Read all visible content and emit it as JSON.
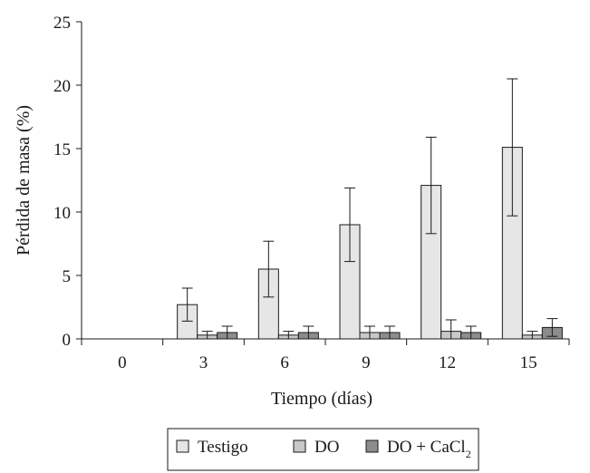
{
  "chart_data": {
    "type": "bar",
    "categories": [
      "0",
      "3",
      "6",
      "9",
      "12",
      "15"
    ],
    "series": [
      {
        "name": "Testigo",
        "values": [
          0,
          2.7,
          5.5,
          9.0,
          12.1,
          15.1
        ],
        "error": [
          0,
          1.3,
          2.2,
          2.9,
          3.8,
          5.4
        ],
        "color": "#e6e6e6"
      },
      {
        "name": "DO",
        "values": [
          0,
          0.3,
          0.3,
          0.5,
          0.6,
          0.3
        ],
        "error": [
          0,
          0.3,
          0.3,
          0.5,
          0.9,
          0.3
        ],
        "color": "#c8c8c8"
      },
      {
        "name": "DO + CaCl",
        "name_subscript": "2",
        "values": [
          0,
          0.5,
          0.5,
          0.5,
          0.5,
          0.9
        ],
        "error": [
          0,
          0.5,
          0.5,
          0.5,
          0.5,
          0.7
        ],
        "color": "#8c8c8c"
      }
    ],
    "xlabel": "Tiempo (días)",
    "ylabel": "Pérdida de masa (%)",
    "ylim": [
      0,
      25
    ],
    "yticks": [
      "0",
      "5",
      "10",
      "15",
      "20",
      "25"
    ],
    "grid": false,
    "legend_position": "bottom"
  }
}
